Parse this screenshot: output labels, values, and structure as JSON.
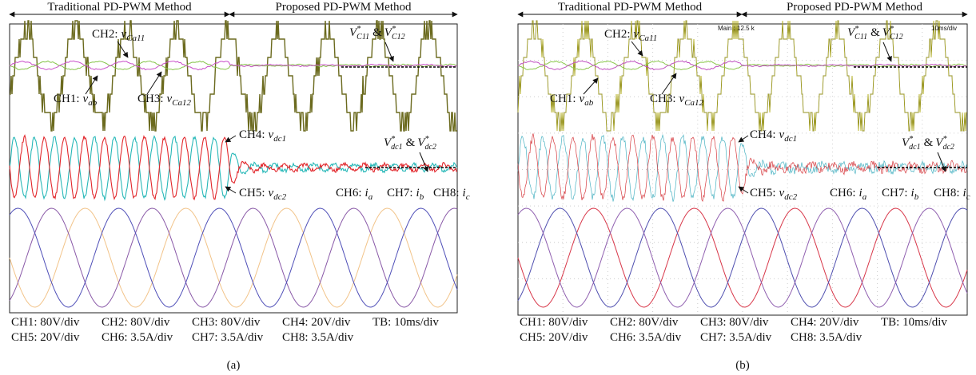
{
  "panels": [
    {
      "header": {
        "left": "Traditional PD-PWM Method",
        "right": "Proposed PD-PWM Method"
      },
      "channels": [
        {
          "channel": "CH2:",
          "symbol": "v",
          "sub": "Ca11"
        },
        {
          "channel": "CH1:",
          "symbol": "v",
          "sub": "ab"
        },
        {
          "channel": "CH3:",
          "symbol": "v",
          "sub": "Ca12"
        },
        {
          "channel": "CH4:",
          "symbol": "v",
          "sub": "dc1"
        },
        {
          "channel": "CH5:",
          "symbol": "v",
          "sub": "dc2"
        },
        {
          "channel": "CH6:",
          "symbol": "i",
          "sub": "a"
        },
        {
          "channel": "CH7:",
          "symbol": "i",
          "sub": "b"
        },
        {
          "channel": "CH8:",
          "symbol": "i",
          "sub": "c"
        }
      ],
      "references": [
        {
          "symbol1": "V",
          "sup1": "*",
          "sub1": "C11",
          "join": "&",
          "symbol2": "V",
          "sup2": "*",
          "sub2": "C12"
        },
        {
          "symbol1": "V",
          "sup1": "*",
          "sub1": "dc1",
          "join": "&",
          "symbol2": "V",
          "sup2": "*",
          "sub2": "dc2"
        }
      ],
      "scope_info": [],
      "scales": [
        [
          "CH1: 80V/div",
          "CH2: 80V/div",
          "CH3: 80V/div",
          "CH4: 20V/div",
          "TB: 10ms/div"
        ],
        [
          "CH5: 20V/div",
          "CH6: 3.5A/div",
          "CH7: 3.5A/div",
          "CH8: 3.5A/div"
        ]
      ],
      "caption": "(a)"
    },
    {
      "header": {
        "left": "Traditional PD-PWM Method",
        "right": "Proposed PD-PWM Method"
      },
      "channels": [
        {
          "channel": "CH2:",
          "symbol": "v",
          "sub": "Ca11"
        },
        {
          "channel": "CH1:",
          "symbol": "v",
          "sub": "ab"
        },
        {
          "channel": "CH3:",
          "symbol": "v",
          "sub": "Ca12"
        },
        {
          "channel": "CH4:",
          "symbol": "v",
          "sub": "dc1"
        },
        {
          "channel": "CH5:",
          "symbol": "v",
          "sub": "dc2"
        },
        {
          "channel": "CH6:",
          "symbol": "i",
          "sub": "a"
        },
        {
          "channel": "CH7:",
          "symbol": "i",
          "sub": "b"
        },
        {
          "channel": "CH8:",
          "symbol": "i",
          "sub": "c"
        }
      ],
      "references": [
        {
          "symbol1": "V",
          "sup1": "*",
          "sub1": "C11",
          "join": "&",
          "symbol2": "V",
          "sup2": "*",
          "sub2": "C12"
        },
        {
          "symbol1": "V",
          "sup1": "*",
          "sub1": "dc1",
          "join": "&",
          "symbol2": "V",
          "sup2": "*",
          "sub2": "dc2"
        }
      ],
      "scope_info": [
        "Main : 12.5 k",
        "10ms/div"
      ],
      "scales": [
        [
          "CH1: 80V/div",
          "CH2: 80V/div",
          "CH3: 80V/div",
          "CH4: 20V/div",
          "TB: 10ms/div"
        ],
        [
          "CH5: 20V/div",
          "CH6: 3.5A/div",
          "CH7: 3.5A/div",
          "CH8: 3.5A/div"
        ]
      ],
      "caption": "(b)"
    }
  ]
}
